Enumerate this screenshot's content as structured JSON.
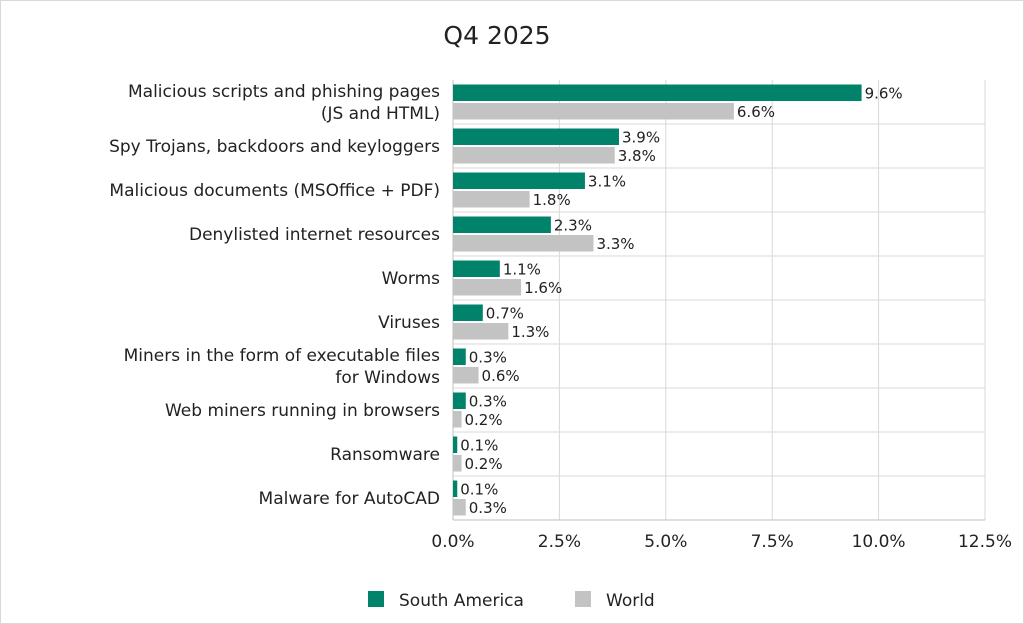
{
  "chart_data": {
    "type": "bar",
    "orientation": "horizontal",
    "title": "Q4 2025",
    "xlabel": "",
    "ylabel": "",
    "categories": [
      [
        "Malicious scripts and phishing pages",
        "(JS and HTML)"
      ],
      [
        "Spy Trojans, backdoors and keyloggers"
      ],
      [
        "Malicious documents (MSOffice + PDF)"
      ],
      [
        "Denylisted internet resources"
      ],
      [
        "Worms"
      ],
      [
        "Viruses"
      ],
      [
        "Miners in the form of executable files",
        "for Windows"
      ],
      [
        "Web miners running in browsers"
      ],
      [
        "Ransomware"
      ],
      [
        "Malware for AutoCAD"
      ]
    ],
    "series": [
      {
        "name": "South America",
        "color": "#00826b",
        "values": [
          9.6,
          3.9,
          3.1,
          2.3,
          1.1,
          0.7,
          0.3,
          0.3,
          0.1,
          0.1
        ],
        "labels": [
          "9.6%",
          "3.9%",
          "3.1%",
          "2.3%",
          "1.1%",
          "0.7%",
          "0.3%",
          "0.3%",
          "0.1%",
          "0.1%"
        ]
      },
      {
        "name": "World",
        "color": "#c3c3c3",
        "values": [
          6.6,
          3.8,
          1.8,
          3.3,
          1.6,
          1.3,
          0.6,
          0.2,
          0.2,
          0.3
        ],
        "labels": [
          "6.6%",
          "3.8%",
          "1.8%",
          "3.3%",
          "1.6%",
          "1.3%",
          "0.6%",
          "0.2%",
          "0.2%",
          "0.3%"
        ]
      }
    ],
    "xlim": [
      0,
      12.5
    ],
    "xticks": [
      0,
      2.5,
      5,
      7.5,
      10,
      12.5
    ],
    "xtick_labels": [
      "0.0%",
      "2.5%",
      "5.0%",
      "7.5%",
      "10.0%",
      "12.5%"
    ],
    "grid": true,
    "legend_position": "bottom-center"
  }
}
